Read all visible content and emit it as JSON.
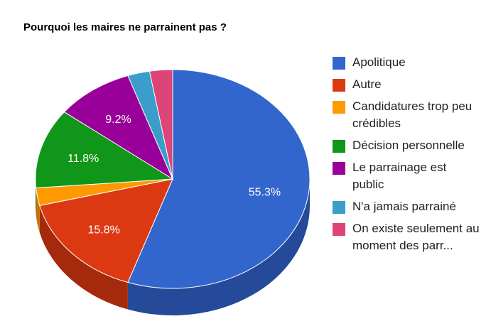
{
  "chart_data": {
    "type": "pie",
    "title": "Pourquoi les maires ne parrainent pas ?",
    "legend_position": "right",
    "slices": [
      {
        "name": "Apolitique",
        "value": 55.3,
        "label": "55.3%",
        "color": "#3366cc",
        "side_color": "#244a99"
      },
      {
        "name": "Autre",
        "value": 15.8,
        "label": "15.8%",
        "color": "#dc3912",
        "side_color": "#a52a0d"
      },
      {
        "name": "Candidatures trop peu crédibles",
        "value": 2.6,
        "label": "",
        "color": "#ff9900",
        "side_color": "#c27400"
      },
      {
        "name": "Décision personnelle",
        "value": 11.8,
        "label": "11.8%",
        "color": "#109618",
        "side_color": "#0b6b11"
      },
      {
        "name": "Le parrainage est public",
        "value": 9.2,
        "label": "9.2%",
        "color": "#990099",
        "side_color": "#6e006e"
      },
      {
        "name": "N'a jamais parrainé",
        "value": 2.6,
        "label": "",
        "color": "#3b9dc9",
        "side_color": "#2a7596"
      },
      {
        "name": "On existe seulement au moment des parr...",
        "value": 2.7,
        "label": "",
        "color": "#dd4477",
        "side_color": "#a83359"
      }
    ]
  }
}
